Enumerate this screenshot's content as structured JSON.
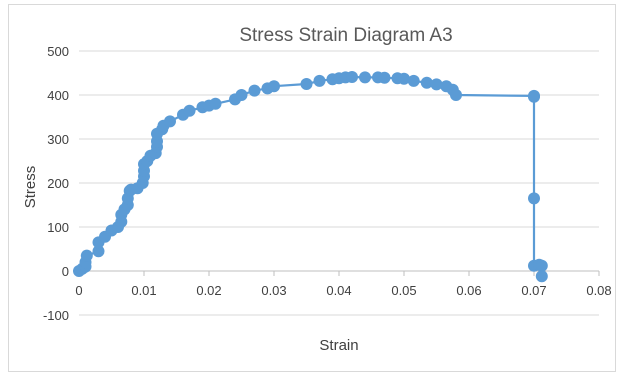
{
  "chart_data": {
    "type": "scatter",
    "title": "Stress Strain Diagram A3",
    "xlabel": "Strain",
    "ylabel": "Stress",
    "xlim": [
      0,
      0.08
    ],
    "ylim": [
      -100,
      500
    ],
    "x_ticks": [
      "0",
      "0.01",
      "0.02",
      "0.03",
      "0.04",
      "0.05",
      "0.06",
      "0.07",
      "0.08"
    ],
    "y_ticks": [
      "-100",
      "0",
      "100",
      "200",
      "300",
      "400",
      "500"
    ],
    "grid": "horizontal",
    "legend": "none",
    "colors": {
      "series": "#5b9bd5",
      "grid": "#d9d9d9",
      "axis": "#bfbfbf",
      "text": "#404040",
      "title": "#595959"
    },
    "series": [
      {
        "marker": "circle",
        "line": "straight",
        "points": [
          [
            0.0,
            0
          ],
          [
            0.0005,
            5
          ],
          [
            0.001,
            10
          ],
          [
            0.001,
            20
          ],
          [
            0.0012,
            35
          ],
          [
            0.003,
            45
          ],
          [
            0.003,
            65
          ],
          [
            0.004,
            78
          ],
          [
            0.005,
            92
          ],
          [
            0.006,
            100
          ],
          [
            0.0065,
            112
          ],
          [
            0.0065,
            128
          ],
          [
            0.007,
            140
          ],
          [
            0.0075,
            150
          ],
          [
            0.0075,
            165
          ],
          [
            0.0078,
            182
          ],
          [
            0.008,
            185
          ],
          [
            0.009,
            188
          ],
          [
            0.0098,
            200
          ],
          [
            0.01,
            215
          ],
          [
            0.01,
            228
          ],
          [
            0.01,
            243
          ],
          [
            0.0105,
            250
          ],
          [
            0.011,
            262
          ],
          [
            0.0118,
            268
          ],
          [
            0.012,
            282
          ],
          [
            0.012,
            295
          ],
          [
            0.012,
            312
          ],
          [
            0.0128,
            322
          ],
          [
            0.013,
            330
          ],
          [
            0.014,
            340
          ],
          [
            0.016,
            355
          ],
          [
            0.017,
            364
          ],
          [
            0.019,
            372
          ],
          [
            0.02,
            376
          ],
          [
            0.021,
            380
          ],
          [
            0.024,
            390
          ],
          [
            0.025,
            400
          ],
          [
            0.027,
            410
          ],
          [
            0.029,
            415
          ],
          [
            0.03,
            420
          ],
          [
            0.035,
            425
          ],
          [
            0.037,
            432
          ],
          [
            0.039,
            436
          ],
          [
            0.04,
            438
          ],
          [
            0.041,
            440
          ],
          [
            0.042,
            441
          ],
          [
            0.044,
            440
          ],
          [
            0.046,
            440
          ],
          [
            0.047,
            439
          ],
          [
            0.049,
            438
          ],
          [
            0.05,
            437
          ],
          [
            0.0515,
            432
          ],
          [
            0.0535,
            428
          ],
          [
            0.055,
            424
          ],
          [
            0.0565,
            420
          ],
          [
            0.0575,
            412
          ],
          [
            0.058,
            400
          ],
          [
            0.07,
            398
          ],
          [
            0.07,
            396
          ],
          [
            0.07,
            165
          ],
          [
            0.07,
            12
          ],
          [
            0.0708,
            14
          ],
          [
            0.0712,
            12
          ],
          [
            0.0712,
            -12
          ]
        ]
      }
    ]
  }
}
